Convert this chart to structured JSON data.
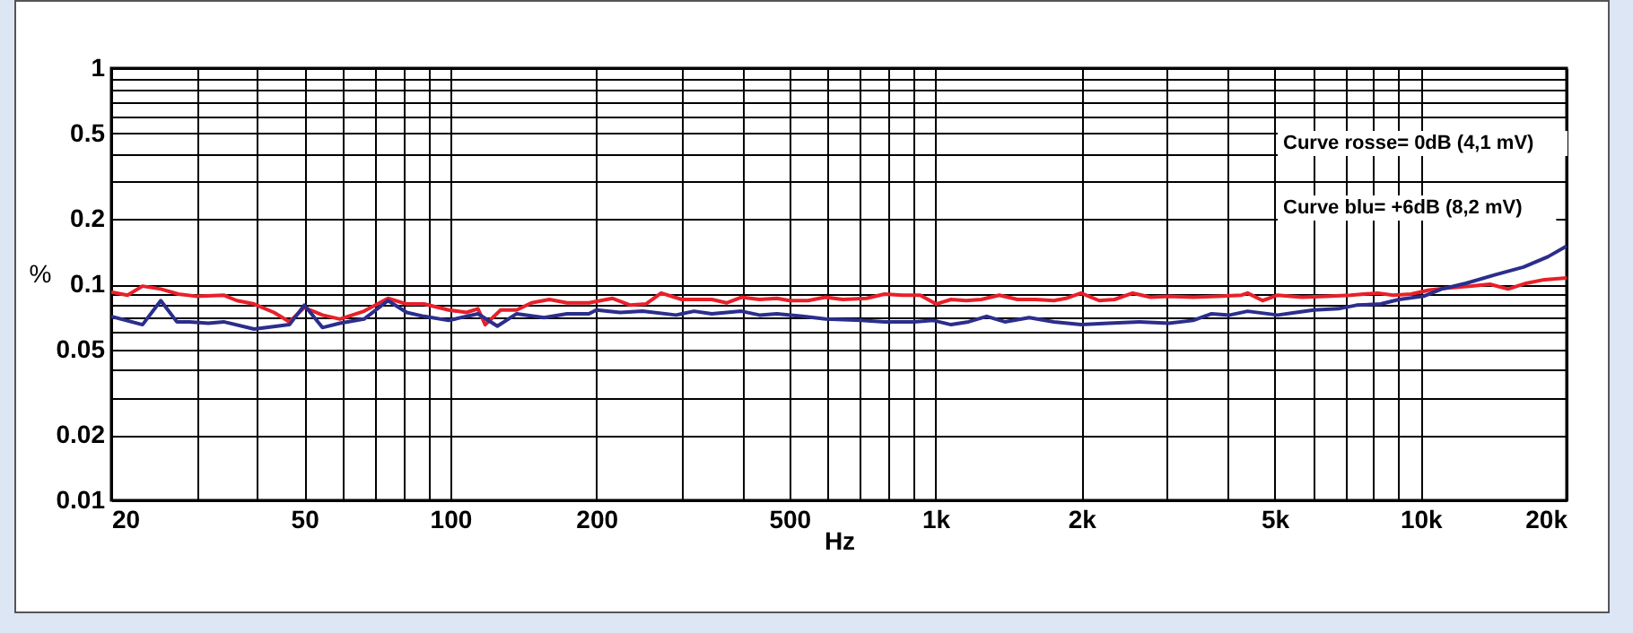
{
  "chart_data": {
    "type": "line",
    "xlabel": "Hz",
    "ylabel": "%",
    "log": "xy",
    "grid": true,
    "marker": "none",
    "line_style": "solid",
    "xlim": [
      20,
      20000
    ],
    "ylim": [
      0.01,
      1
    ],
    "xticks": [
      {
        "value": 20,
        "label": "20"
      },
      {
        "value": 30,
        "label": null
      },
      {
        "value": 40,
        "label": null
      },
      50,
      {
        "value": 60,
        "label": null
      },
      {
        "value": 70,
        "label": null
      },
      {
        "value": 80,
        "label": null
      },
      {
        "value": 90,
        "label": null
      },
      100,
      200,
      {
        "value": 300,
        "label": null
      },
      {
        "value": 400,
        "label": null
      },
      500,
      {
        "value": 600,
        "label": null
      },
      {
        "value": 700,
        "label": null
      },
      {
        "value": 800,
        "label": null
      },
      {
        "value": 900,
        "label": null
      },
      {
        "value": 1000,
        "label": "1k"
      },
      {
        "value": 2000,
        "label": "2k"
      },
      {
        "value": 3000,
        "label": null
      },
      {
        "value": 4000,
        "label": null
      },
      {
        "value": 5000,
        "label": "5k"
      },
      {
        "value": 6000,
        "label": null
      },
      {
        "value": 7000,
        "label": null
      },
      {
        "value": 8000,
        "label": null
      },
      {
        "value": 9000,
        "label": null
      },
      {
        "value": 10000,
        "label": "10k"
      },
      {
        "value": 20000,
        "label": "20k"
      }
    ],
    "yticks": [
      0.01,
      0.02,
      {
        "value": 0.03,
        "label": null
      },
      {
        "value": 0.04,
        "label": null
      },
      0.05,
      {
        "value": 0.06,
        "label": null
      },
      {
        "value": 0.07,
        "label": null
      },
      {
        "value": 0.08,
        "label": null
      },
      {
        "value": 0.09,
        "label": null
      },
      0.1,
      0.2,
      {
        "value": 0.3,
        "label": null
      },
      {
        "value": 0.4,
        "label": null
      },
      0.5,
      {
        "value": 0.6,
        "label": null
      },
      {
        "value": 0.7,
        "label": null
      },
      {
        "value": 0.8,
        "label": null
      },
      {
        "value": 0.9,
        "label": null
      },
      1
    ],
    "annotations": [
      "Curve rosse= 0dB (4,1 mV)",
      "Curve blu= +6dB (8,2 mV)"
    ],
    "series": [
      {
        "color": "#e8202a",
        "x": [
          20,
          21.6,
          23.2,
          25.3,
          27.5,
          29.9,
          34.1,
          36.3,
          39.4,
          43.3,
          46.6,
          50,
          54.5,
          59.2,
          66.4,
          74.4,
          81.3,
          88.3,
          99.2,
          108,
          114,
          118,
          127,
          137,
          147,
          160,
          174,
          193,
          216,
          235,
          253,
          272,
          300,
          346,
          371,
          398,
          434,
          471,
          500,
          546,
          593,
          644,
          721,
          785,
          855,
          930,
          1003,
          1077,
          1157,
          1243,
          1354,
          1476,
          1609,
          1754,
          1857,
          1996,
          2175,
          2340,
          2550,
          2778,
          3027,
          3397,
          3810,
          4276,
          4400,
          4726,
          5076,
          5695,
          6390,
          7170,
          8164,
          8776,
          9560,
          10420,
          11360,
          12750,
          13900,
          15150,
          16500,
          18000,
          20000
        ],
        "values": [
          0.092,
          0.089,
          0.098,
          0.095,
          0.09,
          0.088,
          0.089,
          0.084,
          0.081,
          0.074,
          0.067,
          0.078,
          0.072,
          0.069,
          0.075,
          0.086,
          0.081,
          0.081,
          0.076,
          0.074,
          0.077,
          0.065,
          0.076,
          0.076,
          0.082,
          0.085,
          0.082,
          0.082,
          0.086,
          0.08,
          0.081,
          0.091,
          0.085,
          0.085,
          0.082,
          0.087,
          0.085,
          0.086,
          0.084,
          0.084,
          0.087,
          0.085,
          0.086,
          0.09,
          0.089,
          0.089,
          0.081,
          0.085,
          0.084,
          0.085,
          0.089,
          0.085,
          0.085,
          0.084,
          0.086,
          0.091,
          0.084,
          0.085,
          0.091,
          0.087,
          0.088,
          0.087,
          0.088,
          0.089,
          0.091,
          0.084,
          0.089,
          0.087,
          0.088,
          0.089,
          0.091,
          0.089,
          0.09,
          0.094,
          0.096,
          0.098,
          0.1,
          0.095,
          0.101,
          0.105,
          0.107
        ]
      },
      {
        "color": "#2b2e8c",
        "x": [
          20,
          23.2,
          25.3,
          27.3,
          29,
          31.7,
          34.1,
          39.4,
          46.6,
          50,
          54.5,
          59.2,
          66.4,
          74.4,
          81.3,
          88.3,
          99.2,
          114,
          125,
          137,
          156,
          174,
          193,
          200,
          224,
          249,
          292,
          318,
          346,
          398,
          434,
          471,
          532,
          593,
          702,
          785,
          904,
          990,
          1077,
          1170,
          1275,
          1390,
          1561,
          1754,
          1996,
          2276,
          2630,
          3027,
          3397,
          3710,
          4040,
          4400,
          5076,
          5535,
          6030,
          6770,
          7380,
          8280,
          9030,
          10150,
          11050,
          12400,
          14320,
          16300,
          18300,
          20000
        ],
        "values": [
          0.071,
          0.065,
          0.084,
          0.067,
          0.067,
          0.066,
          0.067,
          0.062,
          0.065,
          0.08,
          0.063,
          0.066,
          0.069,
          0.084,
          0.074,
          0.071,
          0.068,
          0.073,
          0.064,
          0.073,
          0.07,
          0.073,
          0.073,
          0.076,
          0.074,
          0.075,
          0.072,
          0.075,
          0.073,
          0.075,
          0.072,
          0.073,
          0.071,
          0.069,
          0.068,
          0.067,
          0.067,
          0.068,
          0.065,
          0.067,
          0.071,
          0.067,
          0.07,
          0.067,
          0.065,
          0.066,
          0.067,
          0.066,
          0.068,
          0.073,
          0.072,
          0.075,
          0.072,
          0.074,
          0.076,
          0.077,
          0.08,
          0.081,
          0.085,
          0.088,
          0.095,
          0.101,
          0.111,
          0.12,
          0.134,
          0.15
        ]
      }
    ]
  }
}
